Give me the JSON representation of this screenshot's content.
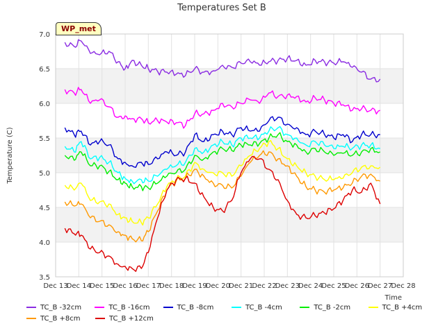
{
  "site_label": "WP_met",
  "chart_data": {
    "type": "line",
    "title": "Temperatures Set B",
    "xlabel": "Time",
    "ylabel": "Temperature (C)",
    "ylim": [
      3.5,
      7.0
    ],
    "xlim": [
      13,
      28
    ],
    "y_ticks": [
      3.5,
      4.0,
      4.5,
      5.0,
      5.5,
      6.0,
      6.5,
      7.0
    ],
    "y_tick_labels": [
      "3.5",
      "4.0",
      "4.5",
      "5.0",
      "5.5",
      "6.0",
      "6.5",
      "7.0"
    ],
    "x_ticks": [
      13,
      14,
      15,
      16,
      17,
      18,
      19,
      20,
      21,
      22,
      23,
      24,
      25,
      26,
      27,
      28
    ],
    "x_tick_labels": [
      "Dec 13",
      "Dec 14",
      "Dec 15",
      "Dec 16",
      "Dec 17",
      "Dec 18",
      "Dec 19",
      "Dec 20",
      "Dec 21",
      "Dec 22",
      "Dec 23",
      "Dec 24",
      "Dec 25",
      "Dec 26",
      "Dec 27",
      "Dec 28"
    ],
    "grid": true,
    "legend_position": "bottom",
    "x": [
      13.4,
      13.8,
      14.1,
      14.5,
      14.9,
      15.3,
      15.7,
      16.0,
      16.3,
      16.7,
      17.0,
      17.4,
      17.8,
      18.2,
      18.6,
      19.0,
      19.4,
      19.8,
      20.2,
      20.6,
      21.0,
      21.4,
      21.8,
      22.2,
      22.6,
      23.0,
      23.4,
      23.8,
      24.2,
      24.6,
      25.0,
      25.4,
      25.8,
      26.2,
      26.6,
      27.0
    ],
    "series": [
      {
        "name": "TC_B -32cm",
        "color": "#8a2be2",
        "values": [
          6.88,
          6.82,
          6.9,
          6.72,
          6.7,
          6.75,
          6.6,
          6.5,
          6.62,
          6.55,
          6.5,
          6.46,
          6.45,
          6.42,
          6.4,
          6.5,
          6.45,
          6.47,
          6.55,
          6.52,
          6.58,
          6.6,
          6.55,
          6.6,
          6.62,
          6.65,
          6.62,
          6.55,
          6.62,
          6.6,
          6.58,
          6.6,
          6.52,
          6.45,
          6.35,
          6.35
        ]
      },
      {
        "name": "TC_B -16cm",
        "color": "#ff00ff",
        "values": [
          6.2,
          6.15,
          6.2,
          6.0,
          6.05,
          5.95,
          5.8,
          5.82,
          5.78,
          5.78,
          5.72,
          5.75,
          5.73,
          5.72,
          5.68,
          5.85,
          5.85,
          5.9,
          6.0,
          5.95,
          6.0,
          6.05,
          6.0,
          6.15,
          6.1,
          6.12,
          6.1,
          6.02,
          6.08,
          6.05,
          6.0,
          5.98,
          5.9,
          5.92,
          5.9,
          5.9
        ]
      },
      {
        "name": "TC_B -8cm",
        "color": "#0000cd",
        "values": [
          5.65,
          5.55,
          5.6,
          5.4,
          5.45,
          5.4,
          5.2,
          5.15,
          5.1,
          5.15,
          5.12,
          5.2,
          5.3,
          5.25,
          5.3,
          5.55,
          5.45,
          5.55,
          5.6,
          5.55,
          5.65,
          5.6,
          5.6,
          5.75,
          5.8,
          5.7,
          5.65,
          5.55,
          5.6,
          5.55,
          5.5,
          5.55,
          5.45,
          5.55,
          5.55,
          5.55
        ]
      },
      {
        "name": "TC_B -4cm",
        "color": "#00ffff",
        "values": [
          5.38,
          5.3,
          5.45,
          5.2,
          5.22,
          5.15,
          5.0,
          4.92,
          4.88,
          4.9,
          4.88,
          4.95,
          5.05,
          5.1,
          5.15,
          5.35,
          5.3,
          5.4,
          5.45,
          5.4,
          5.5,
          5.5,
          5.5,
          5.6,
          5.65,
          5.55,
          5.5,
          5.4,
          5.45,
          5.4,
          5.35,
          5.38,
          5.35,
          5.4,
          5.4,
          5.35
        ]
      },
      {
        "name": "TC_B -2cm",
        "color": "#00ee00",
        "values": [
          5.25,
          5.18,
          5.3,
          5.1,
          5.1,
          5.02,
          4.9,
          4.85,
          4.8,
          4.8,
          4.78,
          4.85,
          4.95,
          5.0,
          5.05,
          5.25,
          5.2,
          5.3,
          5.35,
          5.32,
          5.4,
          5.4,
          5.42,
          5.5,
          5.55,
          5.45,
          5.4,
          5.3,
          5.35,
          5.3,
          5.25,
          5.28,
          5.25,
          5.3,
          5.35,
          5.3
        ]
      },
      {
        "name": "TC_B +4cm",
        "color": "#ffff00",
        "values": [
          4.82,
          4.75,
          4.85,
          4.6,
          4.58,
          4.55,
          4.4,
          4.35,
          4.3,
          4.28,
          4.35,
          4.55,
          4.8,
          4.9,
          4.95,
          5.15,
          5.05,
          5.0,
          5.0,
          4.95,
          5.1,
          5.25,
          5.35,
          5.45,
          5.35,
          5.2,
          5.1,
          5.0,
          4.95,
          4.9,
          4.9,
          4.92,
          5.0,
          5.08,
          5.1,
          5.08
        ]
      },
      {
        "name": "TC_B +8cm",
        "color": "#ff9900",
        "values": [
          4.58,
          4.52,
          4.55,
          4.35,
          4.3,
          4.25,
          4.15,
          4.1,
          4.05,
          4.02,
          4.15,
          4.45,
          4.75,
          4.88,
          4.92,
          5.05,
          4.95,
          4.85,
          4.82,
          4.78,
          4.95,
          5.15,
          5.25,
          5.3,
          5.2,
          5.1,
          4.95,
          4.8,
          4.75,
          4.72,
          4.75,
          4.78,
          4.85,
          4.95,
          4.98,
          4.88
        ]
      },
      {
        "name": "TC_B +12cm",
        "color": "#dd0000",
        "values": [
          4.2,
          4.12,
          4.1,
          3.9,
          3.85,
          3.8,
          3.68,
          3.65,
          3.62,
          3.62,
          3.85,
          4.35,
          4.75,
          4.9,
          4.92,
          4.85,
          4.65,
          4.5,
          4.45,
          4.6,
          5.0,
          5.2,
          5.2,
          5.05,
          4.9,
          4.6,
          4.4,
          4.35,
          4.38,
          4.42,
          4.48,
          4.6,
          4.75,
          4.72,
          4.85,
          4.55
        ]
      }
    ]
  }
}
